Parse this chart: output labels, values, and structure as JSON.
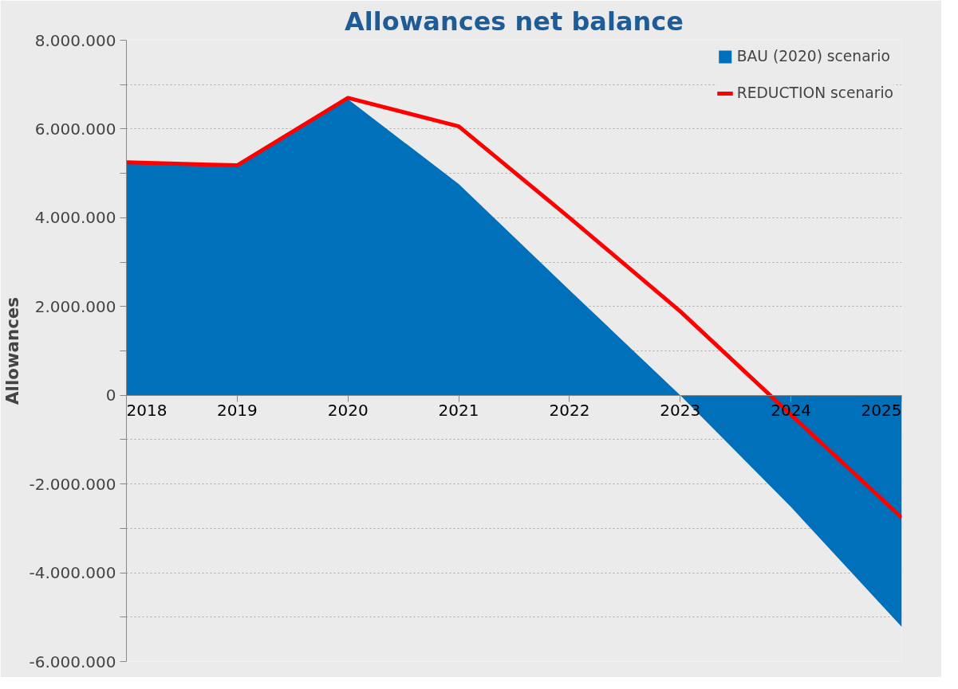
{
  "chart_data": {
    "type": "area",
    "title": "Allowances net balance",
    "ylabel": "Allowances",
    "x": [
      2018,
      2019,
      2020,
      2021,
      2022,
      2023,
      2024,
      2025
    ],
    "xlim": [
      2018,
      2025
    ],
    "xticks": [
      2018,
      2019,
      2020,
      2021,
      2022,
      2023,
      2024,
      2025
    ],
    "ylim": [
      -6000000,
      8000000
    ],
    "yticks": [
      {
        "value": -6000000,
        "label": "-6.000.000"
      },
      {
        "value": -5000000,
        "label": null
      },
      {
        "value": -4000000,
        "label": "-4.000.000"
      },
      {
        "value": -3000000,
        "label": null
      },
      {
        "value": -2000000,
        "label": "-2.000.000"
      },
      {
        "value": -1000000,
        "label": null
      },
      {
        "value": 0,
        "label": "0"
      },
      {
        "value": 1000000,
        "label": null
      },
      {
        "value": 2000000,
        "label": "2.000.000"
      },
      {
        "value": 3000000,
        "label": null
      },
      {
        "value": 4000000,
        "label": "4.000.000"
      },
      {
        "value": 5000000,
        "label": null
      },
      {
        "value": 6000000,
        "label": "6.000.000"
      },
      {
        "value": 7000000,
        "label": null
      },
      {
        "value": 8000000,
        "label": "8.000.000"
      }
    ],
    "grid": "y",
    "legend": "top right",
    "series": [
      {
        "name": "BAU (2020) scenario",
        "color": "#0070ba",
        "values": [
          5230000,
          5180000,
          6670000,
          4760000,
          2370000,
          0,
          -2520000,
          -5220000
        ]
      },
      {
        "name": "REDUCTION scenario",
        "type": "line",
        "color": "#ff0000",
        "values": [
          5250000,
          5180000,
          6700000,
          6060000,
          4000000,
          1890000,
          -440000,
          -2760000
        ]
      }
    ]
  }
}
